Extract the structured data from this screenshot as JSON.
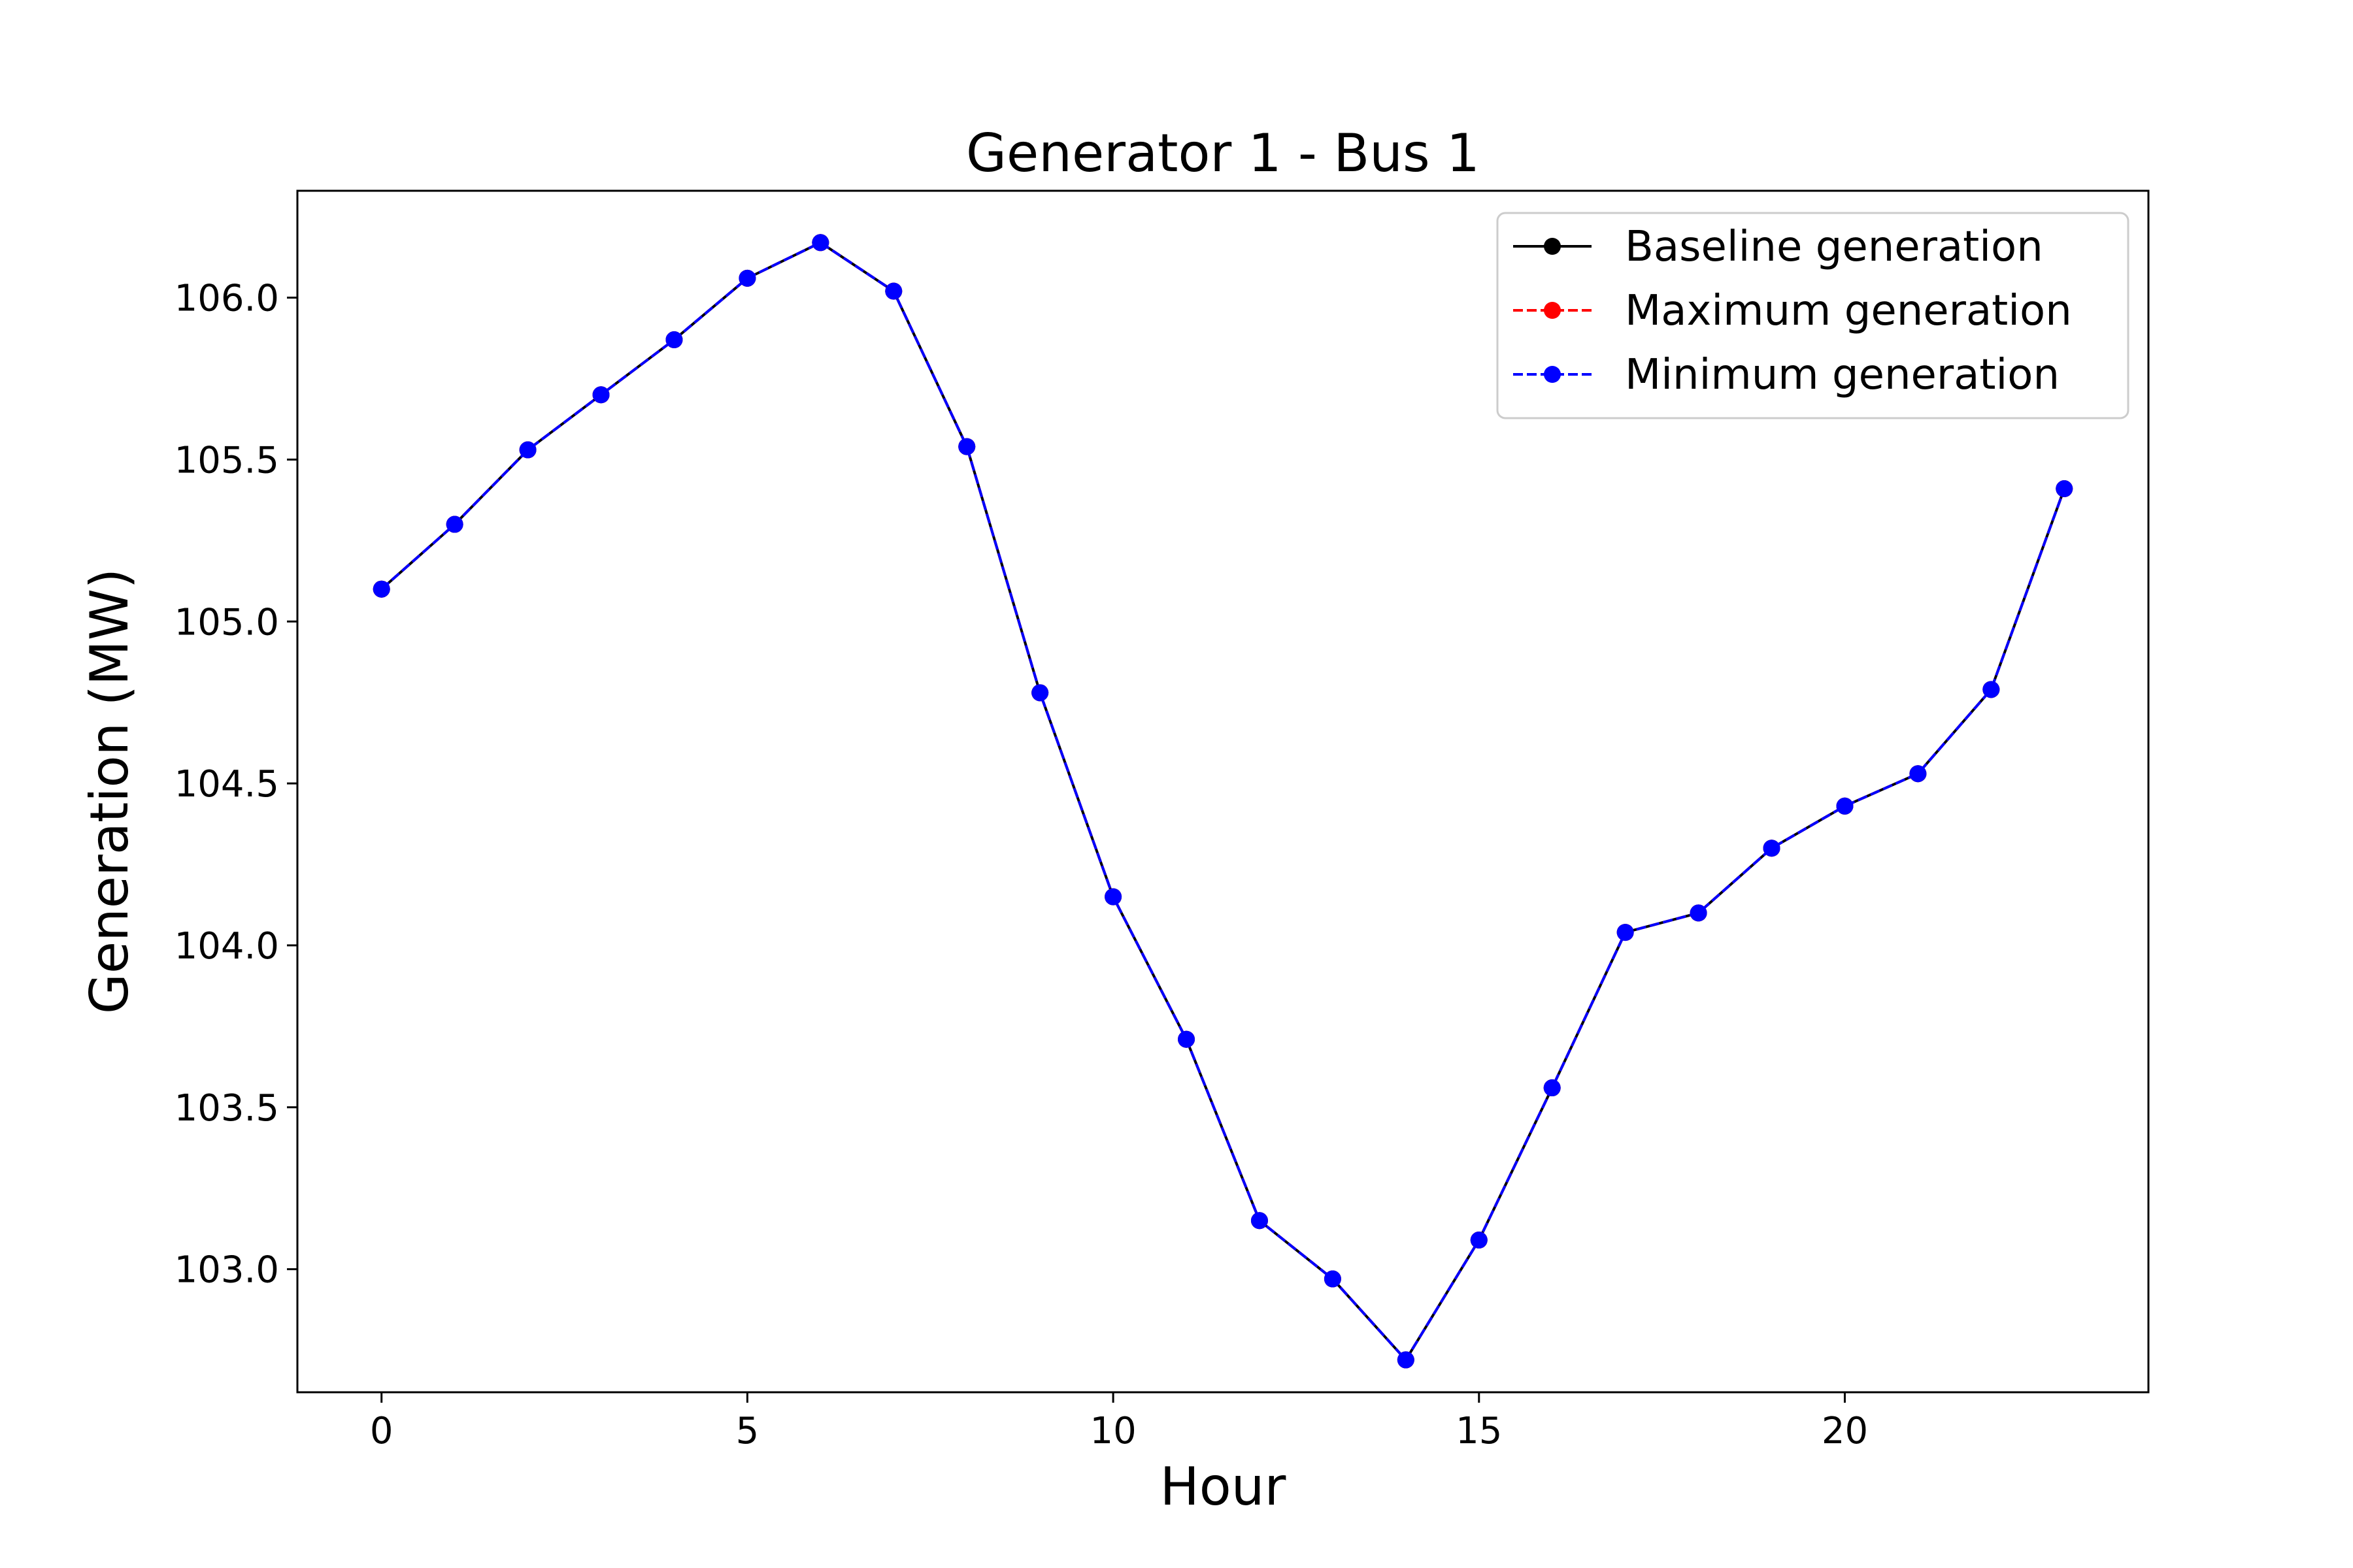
{
  "chart_data": {
    "type": "line",
    "title": "Generator 1 - Bus 1",
    "xlabel": "Hour",
    "ylabel": "Generation (MW)",
    "x": [
      0,
      1,
      2,
      3,
      4,
      5,
      6,
      7,
      8,
      9,
      10,
      11,
      12,
      13,
      14,
      15,
      16,
      17,
      18,
      19,
      20,
      21,
      22,
      23
    ],
    "xlim": [
      -1.15,
      24.15
    ],
    "ylim": [
      102.62,
      106.33
    ],
    "xticks": [
      0,
      5,
      10,
      15,
      20
    ],
    "yticks": [
      103.0,
      103.5,
      104.0,
      104.5,
      105.0,
      105.5,
      106.0
    ],
    "ytick_labels": [
      "103.0",
      "103.5",
      "104.0",
      "104.5",
      "105.0",
      "105.5",
      "106.0"
    ],
    "grid": false,
    "legend_position": "top-right",
    "series": [
      {
        "name": "Baseline generation",
        "color": "#000000",
        "linestyle": "solid",
        "marker": "circle",
        "values": [
          105.1,
          105.3,
          105.53,
          105.7,
          105.87,
          106.06,
          106.17,
          106.02,
          105.54,
          104.78,
          104.15,
          103.71,
          103.15,
          102.97,
          102.72,
          103.09,
          103.56,
          104.04,
          104.1,
          104.3,
          104.43,
          104.53,
          104.79,
          105.41
        ]
      },
      {
        "name": "Maximum generation",
        "color": "#ff0000",
        "linestyle": "dashed",
        "marker": "circle",
        "values": [
          105.1,
          105.3,
          105.53,
          105.7,
          105.87,
          106.06,
          106.17,
          106.02,
          105.54,
          104.78,
          104.15,
          103.71,
          103.15,
          102.97,
          102.72,
          103.09,
          103.56,
          104.04,
          104.1,
          104.3,
          104.43,
          104.53,
          104.79,
          105.41
        ]
      },
      {
        "name": "Minimum generation",
        "color": "#0000ff",
        "linestyle": "dashed",
        "marker": "circle",
        "values": [
          105.1,
          105.3,
          105.53,
          105.7,
          105.87,
          106.06,
          106.17,
          106.02,
          105.54,
          104.78,
          104.15,
          103.71,
          103.15,
          102.97,
          102.72,
          103.09,
          103.56,
          104.04,
          104.1,
          104.3,
          104.43,
          104.53,
          104.79,
          105.41
        ]
      }
    ]
  }
}
